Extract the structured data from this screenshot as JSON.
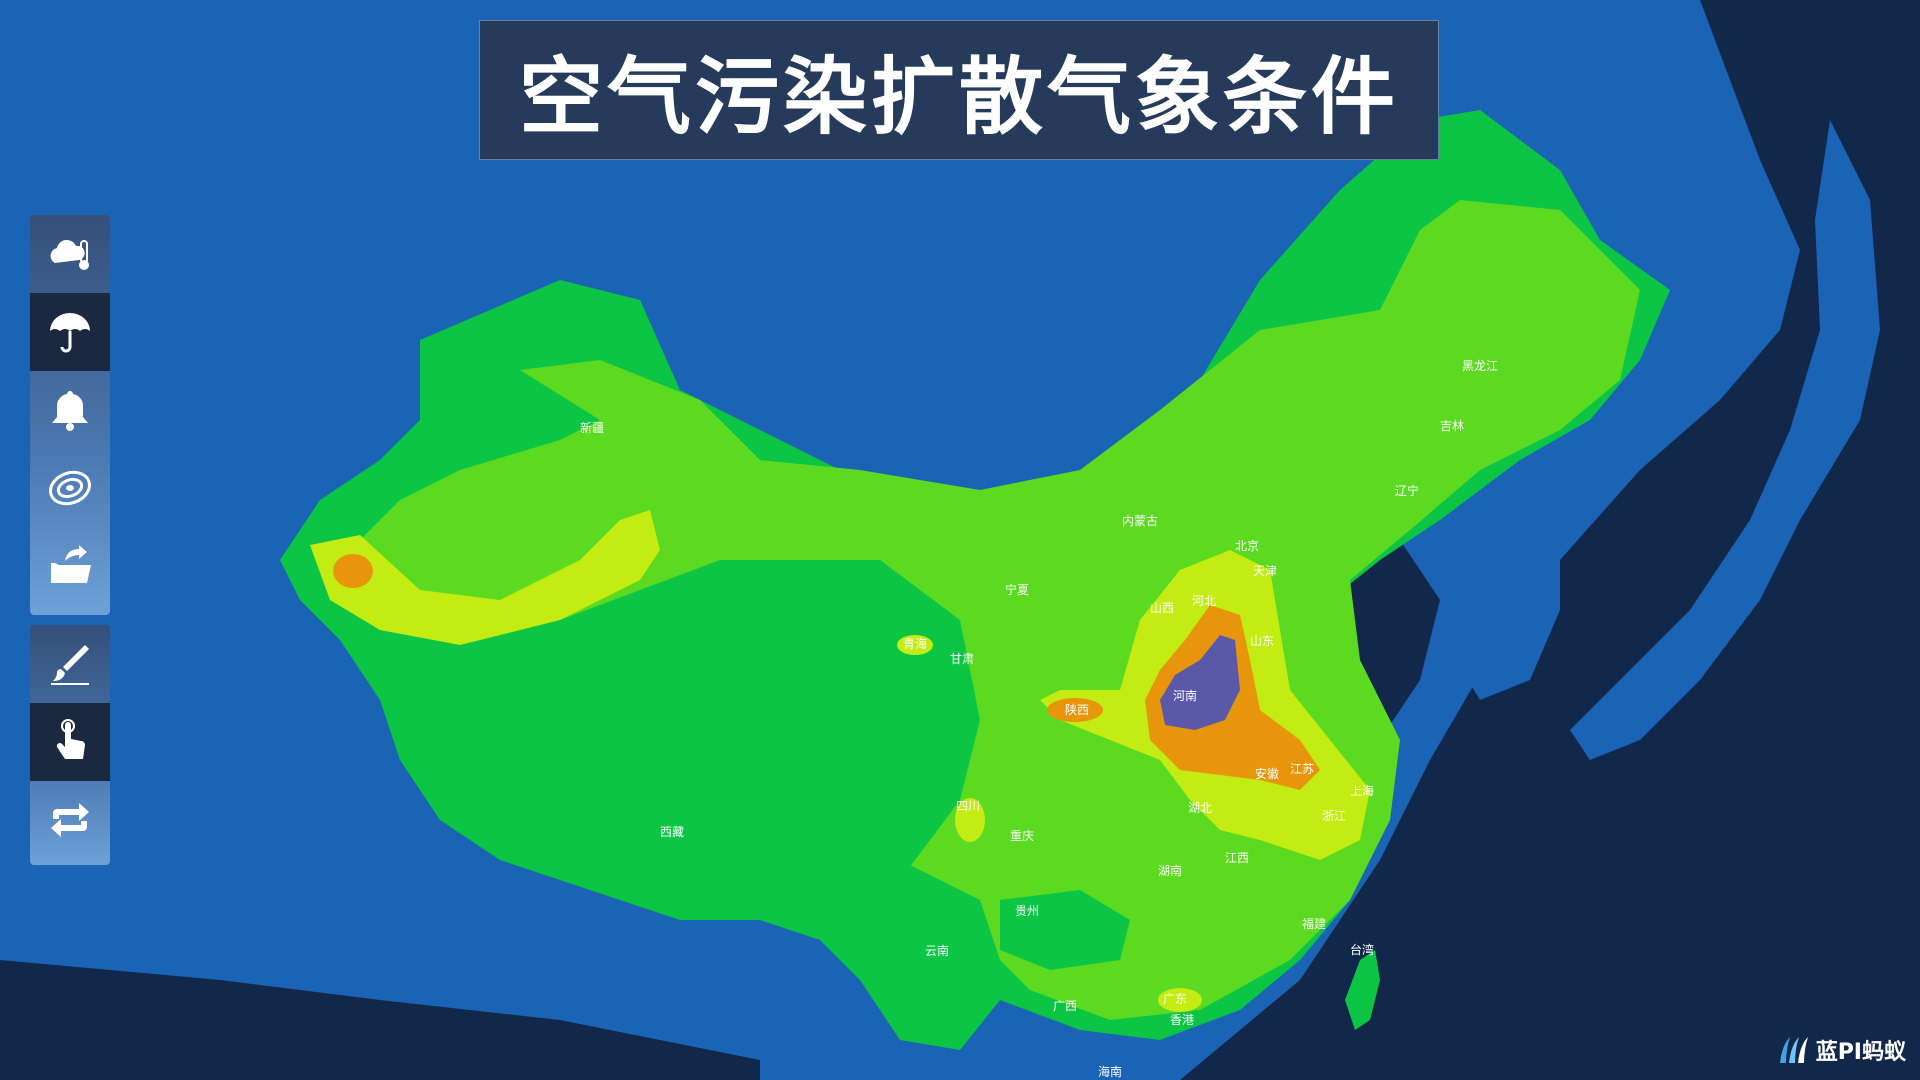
{
  "title": "空气污染扩散气象条件",
  "brand": {
    "name": "蓝PI蚂蚁"
  },
  "toolbar_top": [
    {
      "icon": "cloud-thermometer-icon",
      "active": false
    },
    {
      "icon": "umbrella-icon",
      "active": true
    },
    {
      "icon": "bell-icon",
      "active": false
    },
    {
      "icon": "contour-icon",
      "active": false
    },
    {
      "icon": "folder-open-icon",
      "active": false
    }
  ],
  "toolbar_bottom": [
    {
      "icon": "brush-icon",
      "active": false
    },
    {
      "icon": "hand-pointer-icon",
      "active": true
    },
    {
      "icon": "refresh-icon",
      "active": false
    }
  ],
  "colors": {
    "ocean": "#1b63b4",
    "ocean_dark": "#12284a",
    "level_1": "#0cc544",
    "level_2": "#5cd921",
    "level_3": "#c2ec12",
    "level_4": "#e7960c",
    "level_5": "#5a58a8"
  },
  "labels": {
    "xinjiang": "新疆",
    "heilongjiang": "黑龙江",
    "jilin": "吉林",
    "liaoning": "辽宁",
    "neimenggu": "内蒙古",
    "beijing": "北京",
    "tianjin": "天津",
    "hebei": "河北",
    "shanxi": "山西",
    "shandong": "山东",
    "ningxia": "宁夏",
    "qinghai": "青海",
    "gansu": "甘肃",
    "shaanxi": "陕西",
    "henan": "河南",
    "jiangsu": "江苏",
    "anhui": "安徽",
    "shanghai": "上海",
    "zhejiang": "浙江",
    "hubei": "湖北",
    "sichuan": "四川",
    "chongqing": "重庆",
    "xizang": "西藏",
    "hunan": "湖南",
    "jiangxi": "江西",
    "guizhou": "贵州",
    "fujian": "福建",
    "taiwan": "台湾",
    "yunnan": "云南",
    "guangxi": "广西",
    "guangdong": "广东",
    "hongkong": "香港",
    "hainan": "海南"
  }
}
